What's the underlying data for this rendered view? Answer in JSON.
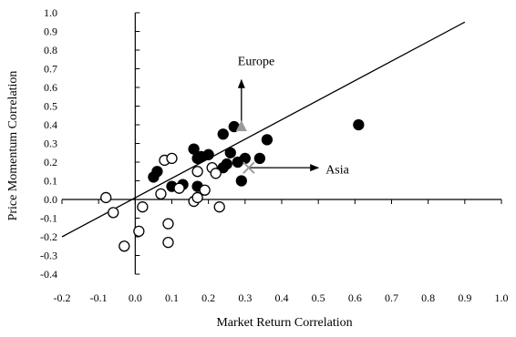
{
  "chart_data": {
    "type": "scatter",
    "xlabel": "Market Return Correlation",
    "ylabel": "Price Momentum Correlation",
    "xlim": [
      -0.2,
      1.0
    ],
    "ylim": [
      -0.4,
      1.0
    ],
    "xticks": [
      "-0.2",
      "-0.1",
      "0.0",
      "0.1",
      "0.2",
      "0.3",
      "0.4",
      "0.5",
      "0.6",
      "0.7",
      "0.8",
      "0.9",
      "1.0"
    ],
    "yticks": [
      "-0.4",
      "-0.3",
      "-0.2",
      "-0.1",
      "0.0",
      "0.1",
      "0.2",
      "0.3",
      "0.4",
      "0.5",
      "0.6",
      "0.7",
      "0.8",
      "0.9",
      "1.0"
    ],
    "grid": false,
    "axes_cross_at": [
      0,
      0
    ],
    "trendline": {
      "x": [
        -0.2,
        0.9
      ],
      "y": [
        -0.2,
        0.95
      ]
    },
    "series": [
      {
        "marker": "filled-circle",
        "color": "#000000",
        "points": [
          [
            0.05,
            0.12
          ],
          [
            0.06,
            0.15
          ],
          [
            0.1,
            0.07
          ],
          [
            0.13,
            0.08
          ],
          [
            0.16,
            0.27
          ],
          [
            0.17,
            0.22
          ],
          [
            0.18,
            0.23
          ],
          [
            0.2,
            0.24
          ],
          [
            0.24,
            0.35
          ],
          [
            0.24,
            0.17
          ],
          [
            0.25,
            0.19
          ],
          [
            0.26,
            0.25
          ],
          [
            0.27,
            0.39
          ],
          [
            0.28,
            0.2
          ],
          [
            0.29,
            0.1
          ],
          [
            0.3,
            0.22
          ],
          [
            0.34,
            0.22
          ],
          [
            0.36,
            0.32
          ],
          [
            0.61,
            0.4
          ],
          [
            0.17,
            0.07
          ]
        ]
      },
      {
        "marker": "open-circle",
        "color": "#000000",
        "points": [
          [
            -0.08,
            0.01
          ],
          [
            -0.06,
            -0.07
          ],
          [
            -0.03,
            -0.25
          ],
          [
            0.01,
            -0.17
          ],
          [
            0.02,
            -0.04
          ],
          [
            0.07,
            0.03
          ],
          [
            0.08,
            0.21
          ],
          [
            0.1,
            0.22
          ],
          [
            0.12,
            0.06
          ],
          [
            0.16,
            -0.01
          ],
          [
            0.17,
            0.15
          ],
          [
            0.17,
            0.01
          ],
          [
            0.19,
            0.05
          ],
          [
            0.21,
            0.17
          ],
          [
            0.22,
            0.14
          ],
          [
            0.23,
            -0.04
          ],
          [
            0.09,
            -0.13
          ],
          [
            0.09,
            -0.23
          ]
        ]
      }
    ],
    "special_points": [
      {
        "marker": "triangle",
        "color": "#9a9a9a",
        "x": 0.29,
        "y": 0.39
      },
      {
        "marker": "x",
        "color": "#9a9a9a",
        "x": 0.31,
        "y": 0.17
      }
    ],
    "annotations": [
      {
        "text": "Europe",
        "text_at": [
          0.28,
          0.72
        ],
        "arrow_from": [
          0.29,
          0.39
        ],
        "arrow_to": [
          0.29,
          0.64
        ]
      },
      {
        "text": "Asia",
        "text_at": [
          0.52,
          0.14
        ],
        "arrow_from": [
          0.31,
          0.17
        ],
        "arrow_to": [
          0.5,
          0.17
        ]
      }
    ]
  }
}
